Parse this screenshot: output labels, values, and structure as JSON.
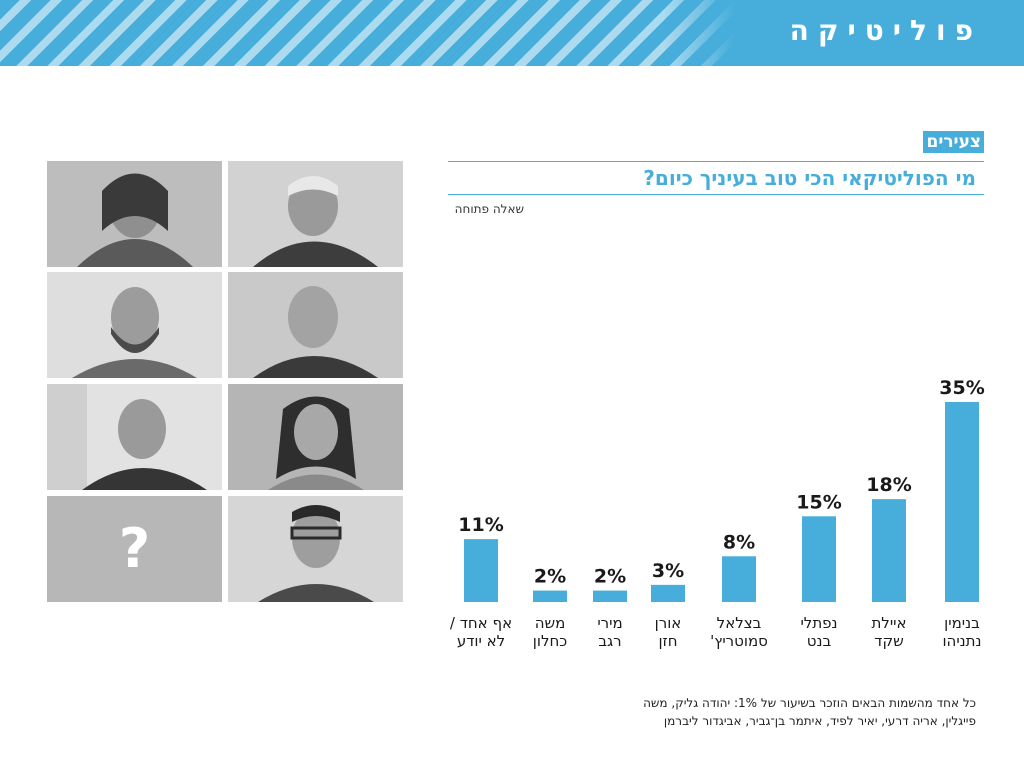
{
  "header": {
    "section_title": "פוליטיקה",
    "accent": "#47aedb"
  },
  "panel": {
    "tag": "צעירים",
    "question": "מי הפוליטיקאי הכי טוב בעיניך כיום?",
    "subtitle": "שאלה פתוחה"
  },
  "photos": {
    "unknown_mark": "?"
  },
  "chart_data": {
    "type": "bar",
    "title": "מי הפוליטיקאי הכי טוב בעיניך כיום?",
    "categories": [
      [
        "בנימין",
        "נתניהו"
      ],
      [
        "איילת",
        "שקד"
      ],
      [
        "נפתלי",
        "בנט"
      ],
      [
        "בצלאל",
        "סמוטריץ'"
      ],
      [
        "אורן",
        "חזן"
      ],
      [
        "מירי",
        "רגב"
      ],
      [
        "משה",
        "כחלון"
      ],
      [
        "אף אחד /",
        "לא יודע"
      ]
    ],
    "values": [
      35,
      18,
      15,
      8,
      3,
      2,
      2,
      11
    ],
    "value_labels": [
      "35%",
      "18%",
      "15%",
      "8%",
      "3%",
      "2%",
      "2%",
      "11%"
    ],
    "unit": "%",
    "ylim": [
      0,
      35
    ],
    "bar_color": "#47aedb",
    "direction": "rtl",
    "grid": false
  },
  "footnote": {
    "line1": "כל אחד מהשמות הבאים הוזכר בשיעור של 1%: יהודה גליק, משה",
    "line2": "פייגלין, אריה דרעי, יאיר לפיד, איתמר בן־גביר, אביגדור ליברמן"
  }
}
